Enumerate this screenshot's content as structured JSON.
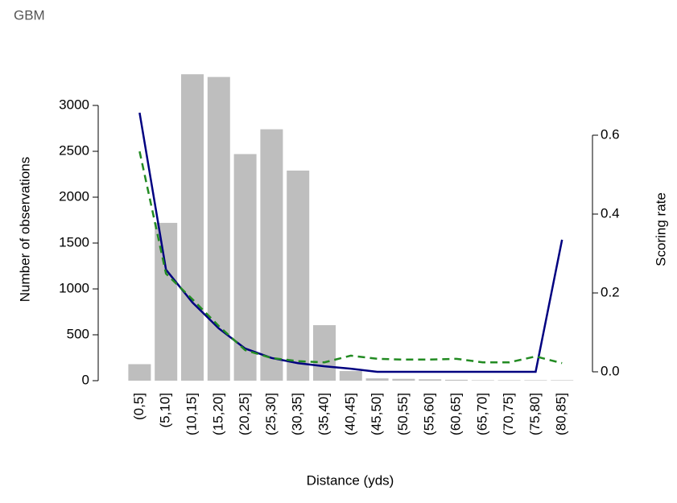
{
  "chart_data": {
    "type": "bar",
    "title": "GBM",
    "xlabel": "Distance (yds)",
    "ylabel": "Number of observations",
    "y2label": "Scoring rate",
    "categories": [
      "(0,5]",
      "(5,10]",
      "(10,15]",
      "(15,20]",
      "(20,25]",
      "(25,30]",
      "(30,35]",
      "(35,40]",
      "(40,45]",
      "(45,50]",
      "(50,55]",
      "(55,60]",
      "(60,65]",
      "(65,70]",
      "(70,75]",
      "(75,80]",
      "(80,85]"
    ],
    "series": [
      {
        "type": "bar",
        "color": "#bebebe",
        "values": [
          180,
          1720,
          3340,
          3310,
          2470,
          2740,
          2290,
          605,
          105,
          25,
          20,
          15,
          10,
          5,
          5,
          5,
          5
        ]
      },
      {
        "type": "line",
        "axis": "y2",
        "color": "#000080",
        "dash": false,
        "values": [
          0.657,
          0.259,
          0.176,
          0.11,
          0.059,
          0.035,
          0.022,
          0.014,
          0.008,
          0,
          0,
          0,
          0,
          0,
          0,
          0,
          0.335
        ]
      },
      {
        "type": "line",
        "axis": "y2",
        "color": "#228b22",
        "dash": true,
        "values": [
          0.559,
          0.249,
          0.184,
          0.116,
          0.055,
          0.035,
          0.027,
          0.024,
          0.041,
          0.033,
          0.031,
          0.031,
          0.033,
          0.024,
          0.024,
          0.039,
          0.022
        ]
      }
    ],
    "ylim": [
      0,
      3000
    ],
    "yticks": [
      0,
      500,
      1000,
      1500,
      2000,
      2500,
      3000
    ],
    "y2lim": [
      0,
      0.6
    ],
    "y2ticks": [
      {
        "value": 0,
        "label": "0.0"
      },
      {
        "value": 0.2,
        "label": "0.2"
      },
      {
        "value": 0.4,
        "label": "0.4"
      },
      {
        "value": 0.6,
        "label": "0.6"
      }
    ]
  }
}
